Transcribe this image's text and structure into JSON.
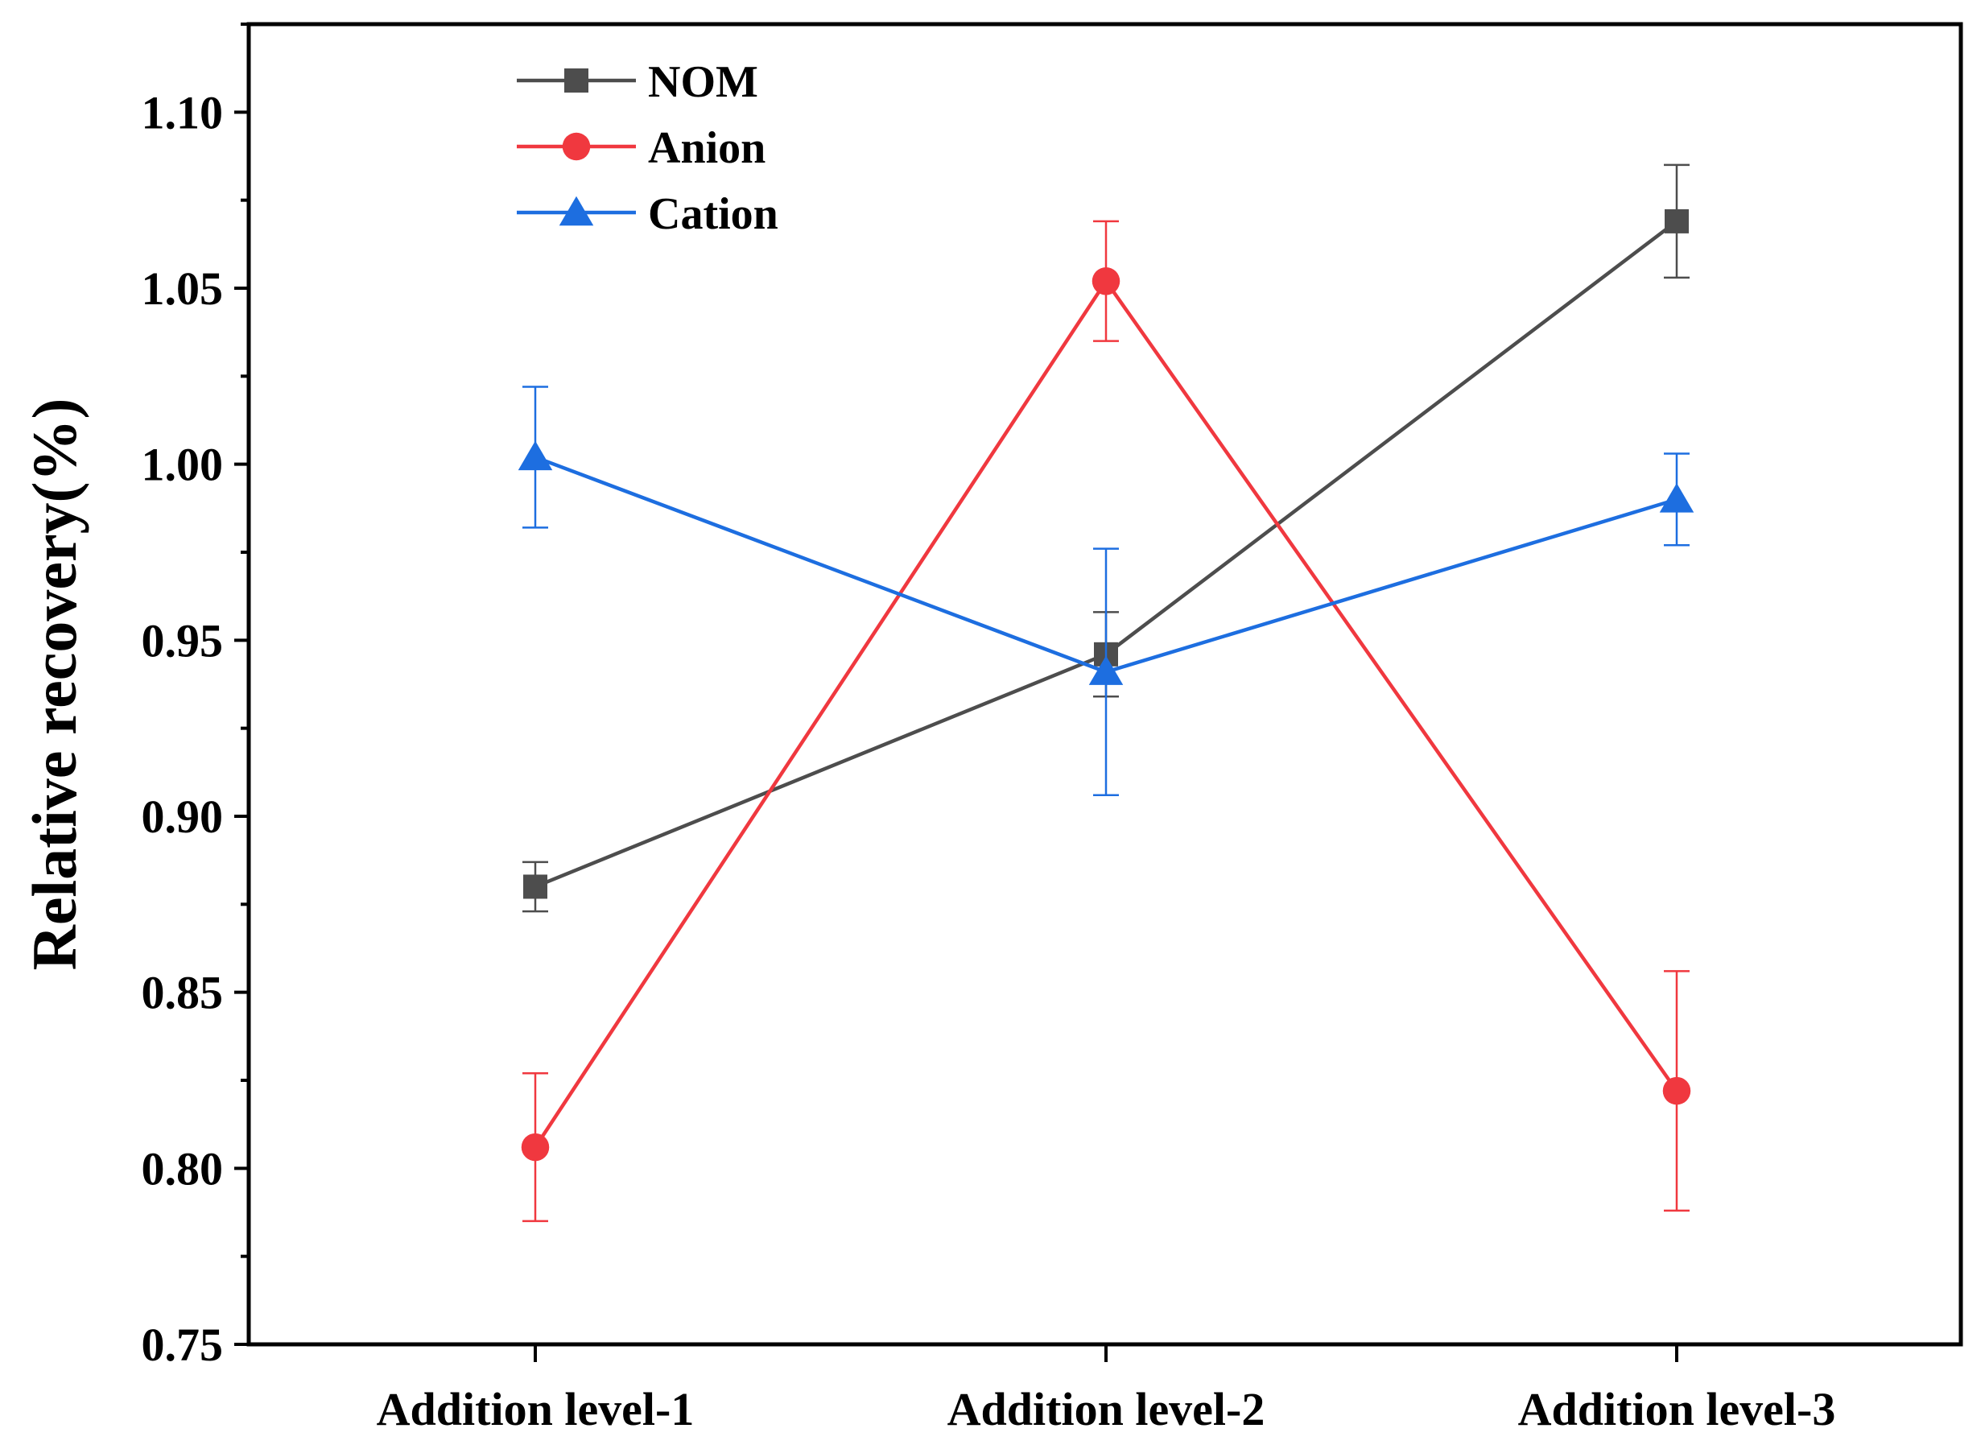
{
  "chart_data": {
    "type": "line",
    "title": "",
    "xlabel": "",
    "ylabel": "Relative recovery(%)",
    "categories": [
      "Addition level-1",
      "Addition level-2",
      "Addition level-3"
    ],
    "ylim": [
      0.75,
      1.125
    ],
    "yticks": [
      "0.75",
      "0.80",
      "0.85",
      "0.90",
      "0.95",
      "1.00",
      "1.05",
      "1.10"
    ],
    "legend_position": "top-left",
    "grid": false,
    "series": [
      {
        "name": "NOM",
        "color": "#4d4d4d",
        "marker": "square",
        "values": [
          0.88,
          0.946,
          1.069
        ],
        "errors": [
          0.007,
          0.012,
          0.016
        ]
      },
      {
        "name": "Anion",
        "color": "#f0383f",
        "marker": "circle",
        "values": [
          0.806,
          1.052,
          0.822
        ],
        "errors": [
          0.021,
          0.017,
          0.034
        ]
      },
      {
        "name": "Cation",
        "color": "#1d6ee0",
        "marker": "triangle",
        "values": [
          1.002,
          0.941,
          0.99
        ],
        "errors": [
          0.02,
          0.035,
          0.013
        ]
      }
    ]
  }
}
